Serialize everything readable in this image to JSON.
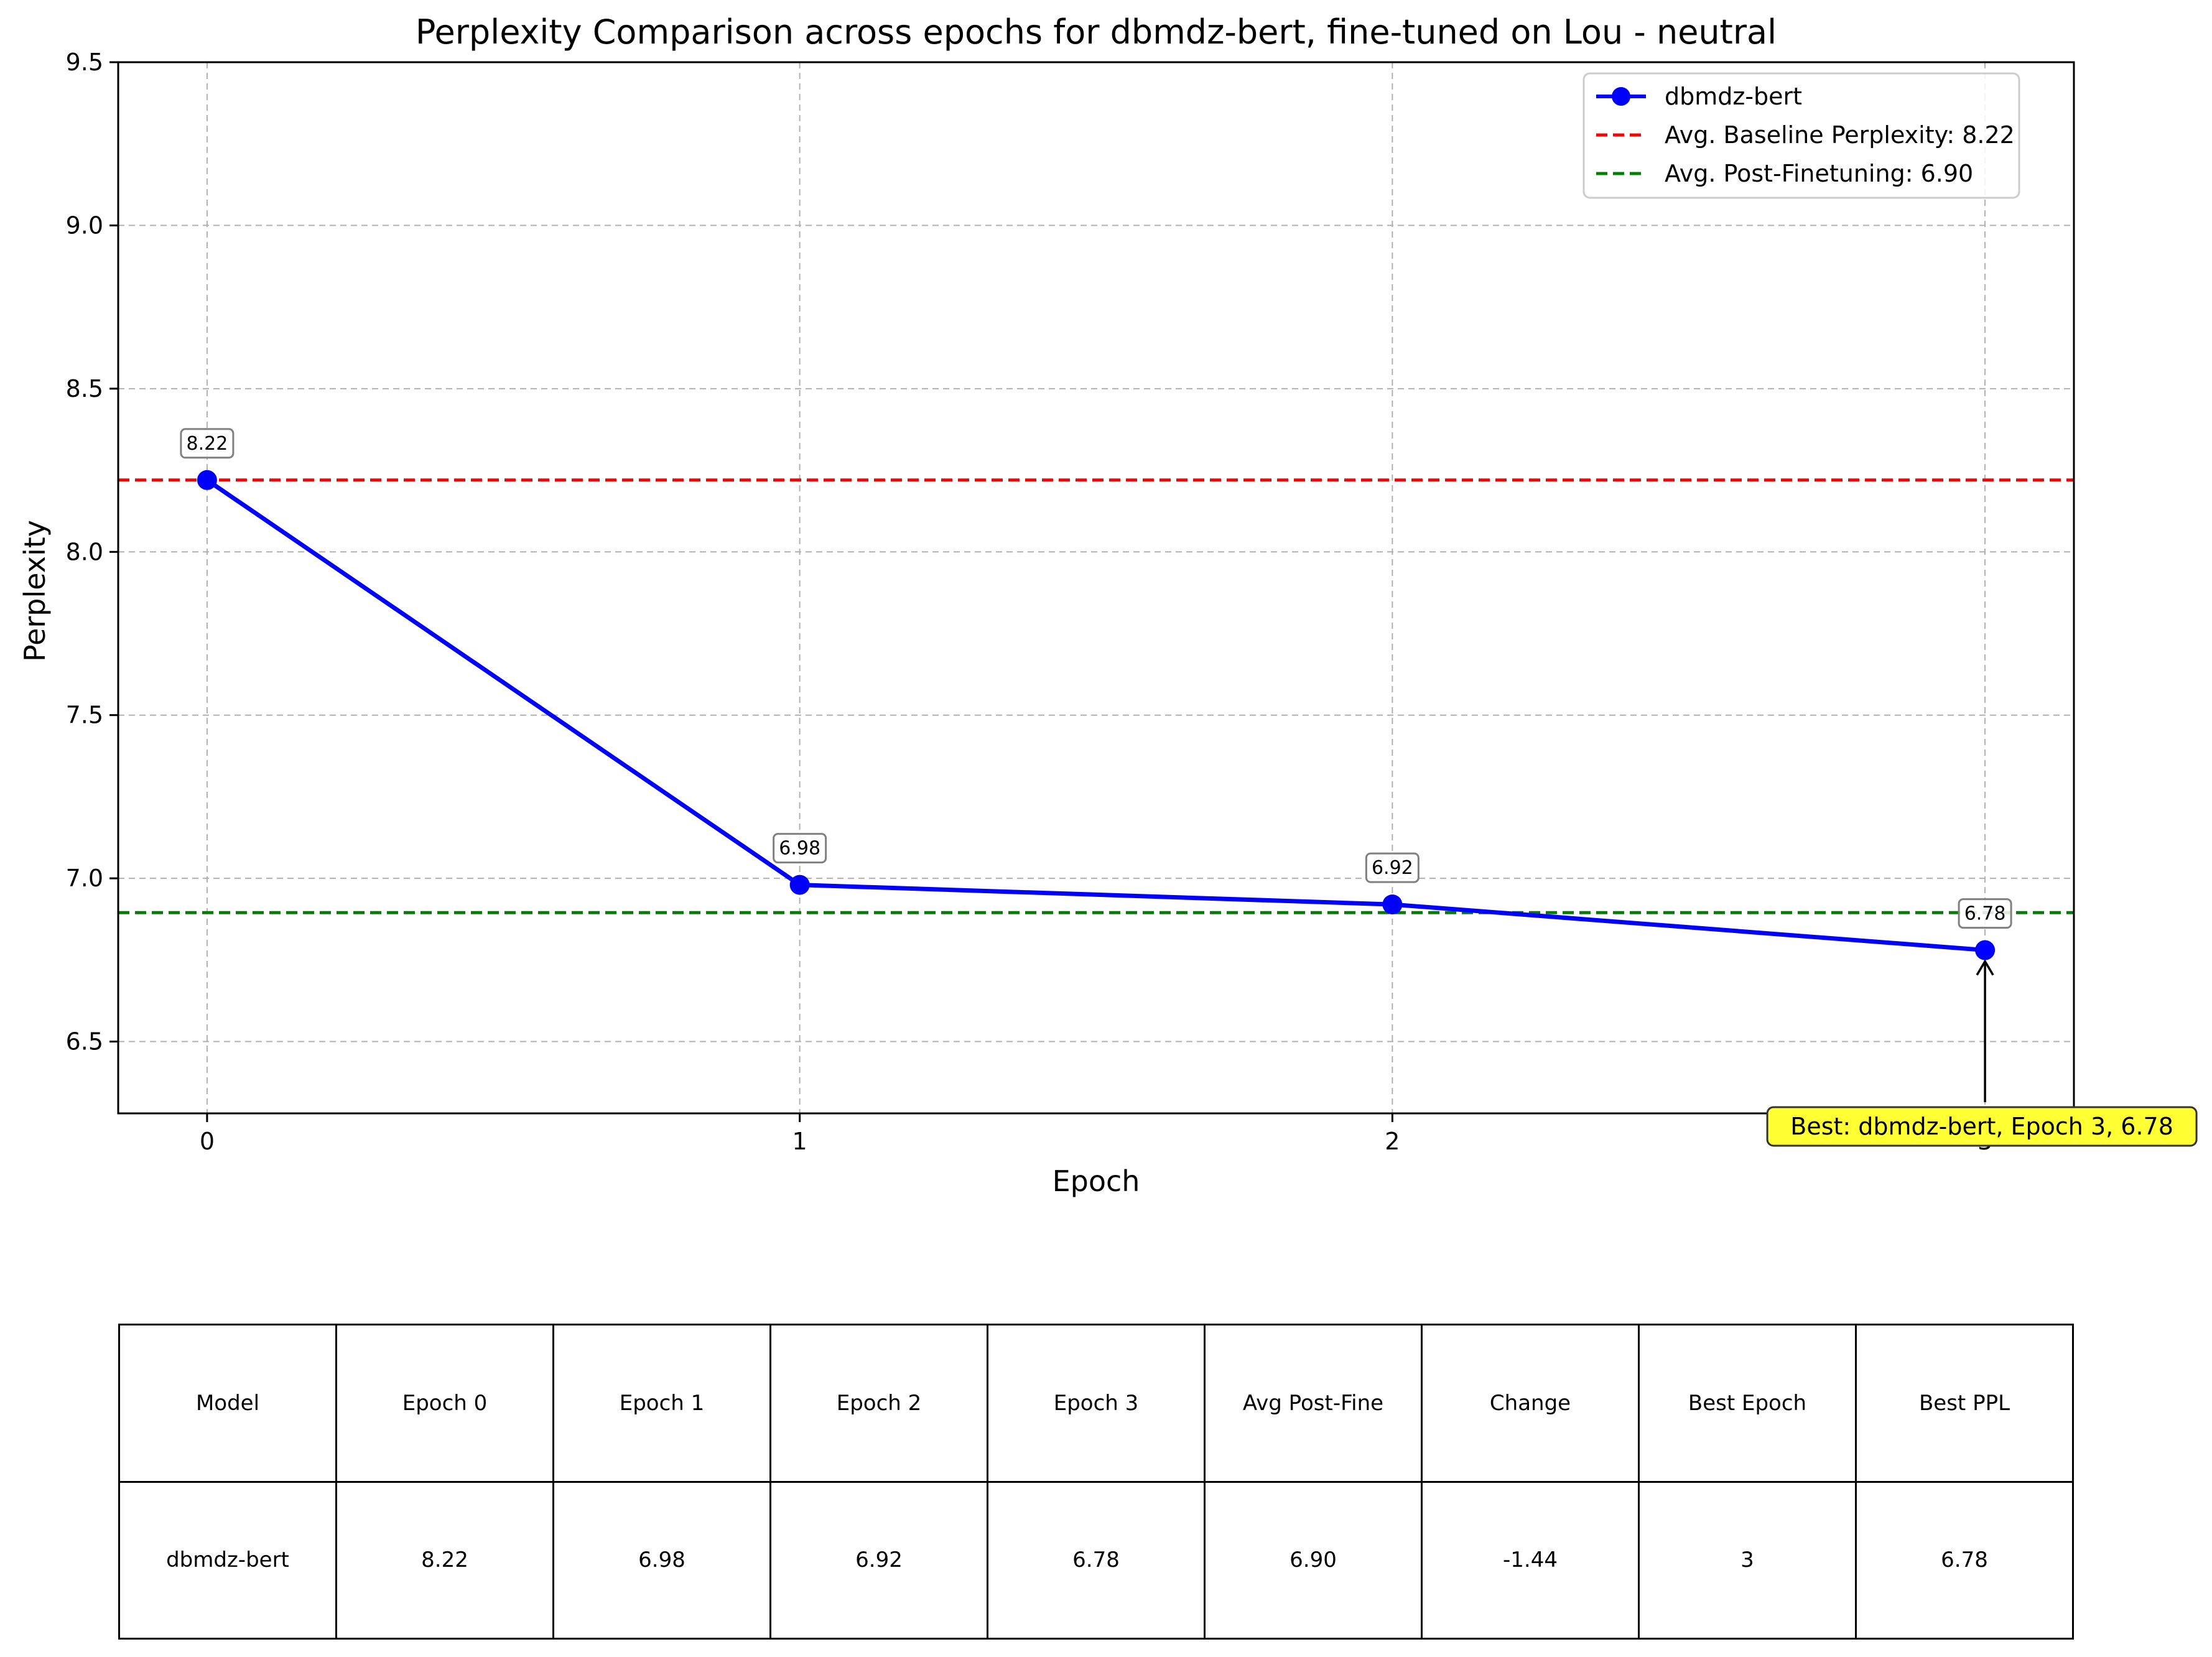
{
  "chart_data": {
    "type": "line",
    "title": "Perplexity Comparison across epochs for dbmdz-bert, fine-tuned on Lou - neutral",
    "xlabel": "Epoch",
    "ylabel": "Perplexity",
    "xlim": [
      -0.15,
      3.15
    ],
    "ylim": [
      6.28,
      9.5
    ],
    "x": [
      0,
      1,
      2,
      3
    ],
    "xticks": [
      "0",
      "1",
      "2",
      "3"
    ],
    "yticks": [
      "6.5",
      "7.0",
      "7.5",
      "8.0",
      "8.5",
      "9.0",
      "9.5"
    ],
    "grid": true,
    "legend_position": "top-right",
    "series": [
      {
        "name": "dbmdz-bert",
        "values": [
          8.22,
          6.98,
          6.92,
          6.78
        ],
        "labels": [
          "8.22",
          "6.98",
          "6.92",
          "6.78"
        ],
        "color": "#0000ff"
      }
    ],
    "reference_lines": [
      {
        "label": "Avg. Baseline Perplexity: 8.22",
        "value": 8.22,
        "color": "#ff0000"
      },
      {
        "label": "Avg. Post-Finetuning: 6.90",
        "value": 6.895,
        "color": "#008000"
      }
    ],
    "annotation": {
      "text": "Best: dbmdz-bert, Epoch 3, 6.78",
      "x": 3,
      "y": 6.78,
      "color": "#ffff33"
    }
  },
  "table": {
    "headers": [
      "Model",
      "Epoch 0",
      "Epoch 1",
      "Epoch 2",
      "Epoch 3",
      "Avg Post-Fine",
      "Change",
      "Best Epoch",
      "Best PPL"
    ],
    "rows": [
      [
        "dbmdz-bert",
        "8.22",
        "6.98",
        "6.92",
        "6.78",
        "6.90",
        "-1.44",
        "3",
        "6.78"
      ]
    ]
  }
}
